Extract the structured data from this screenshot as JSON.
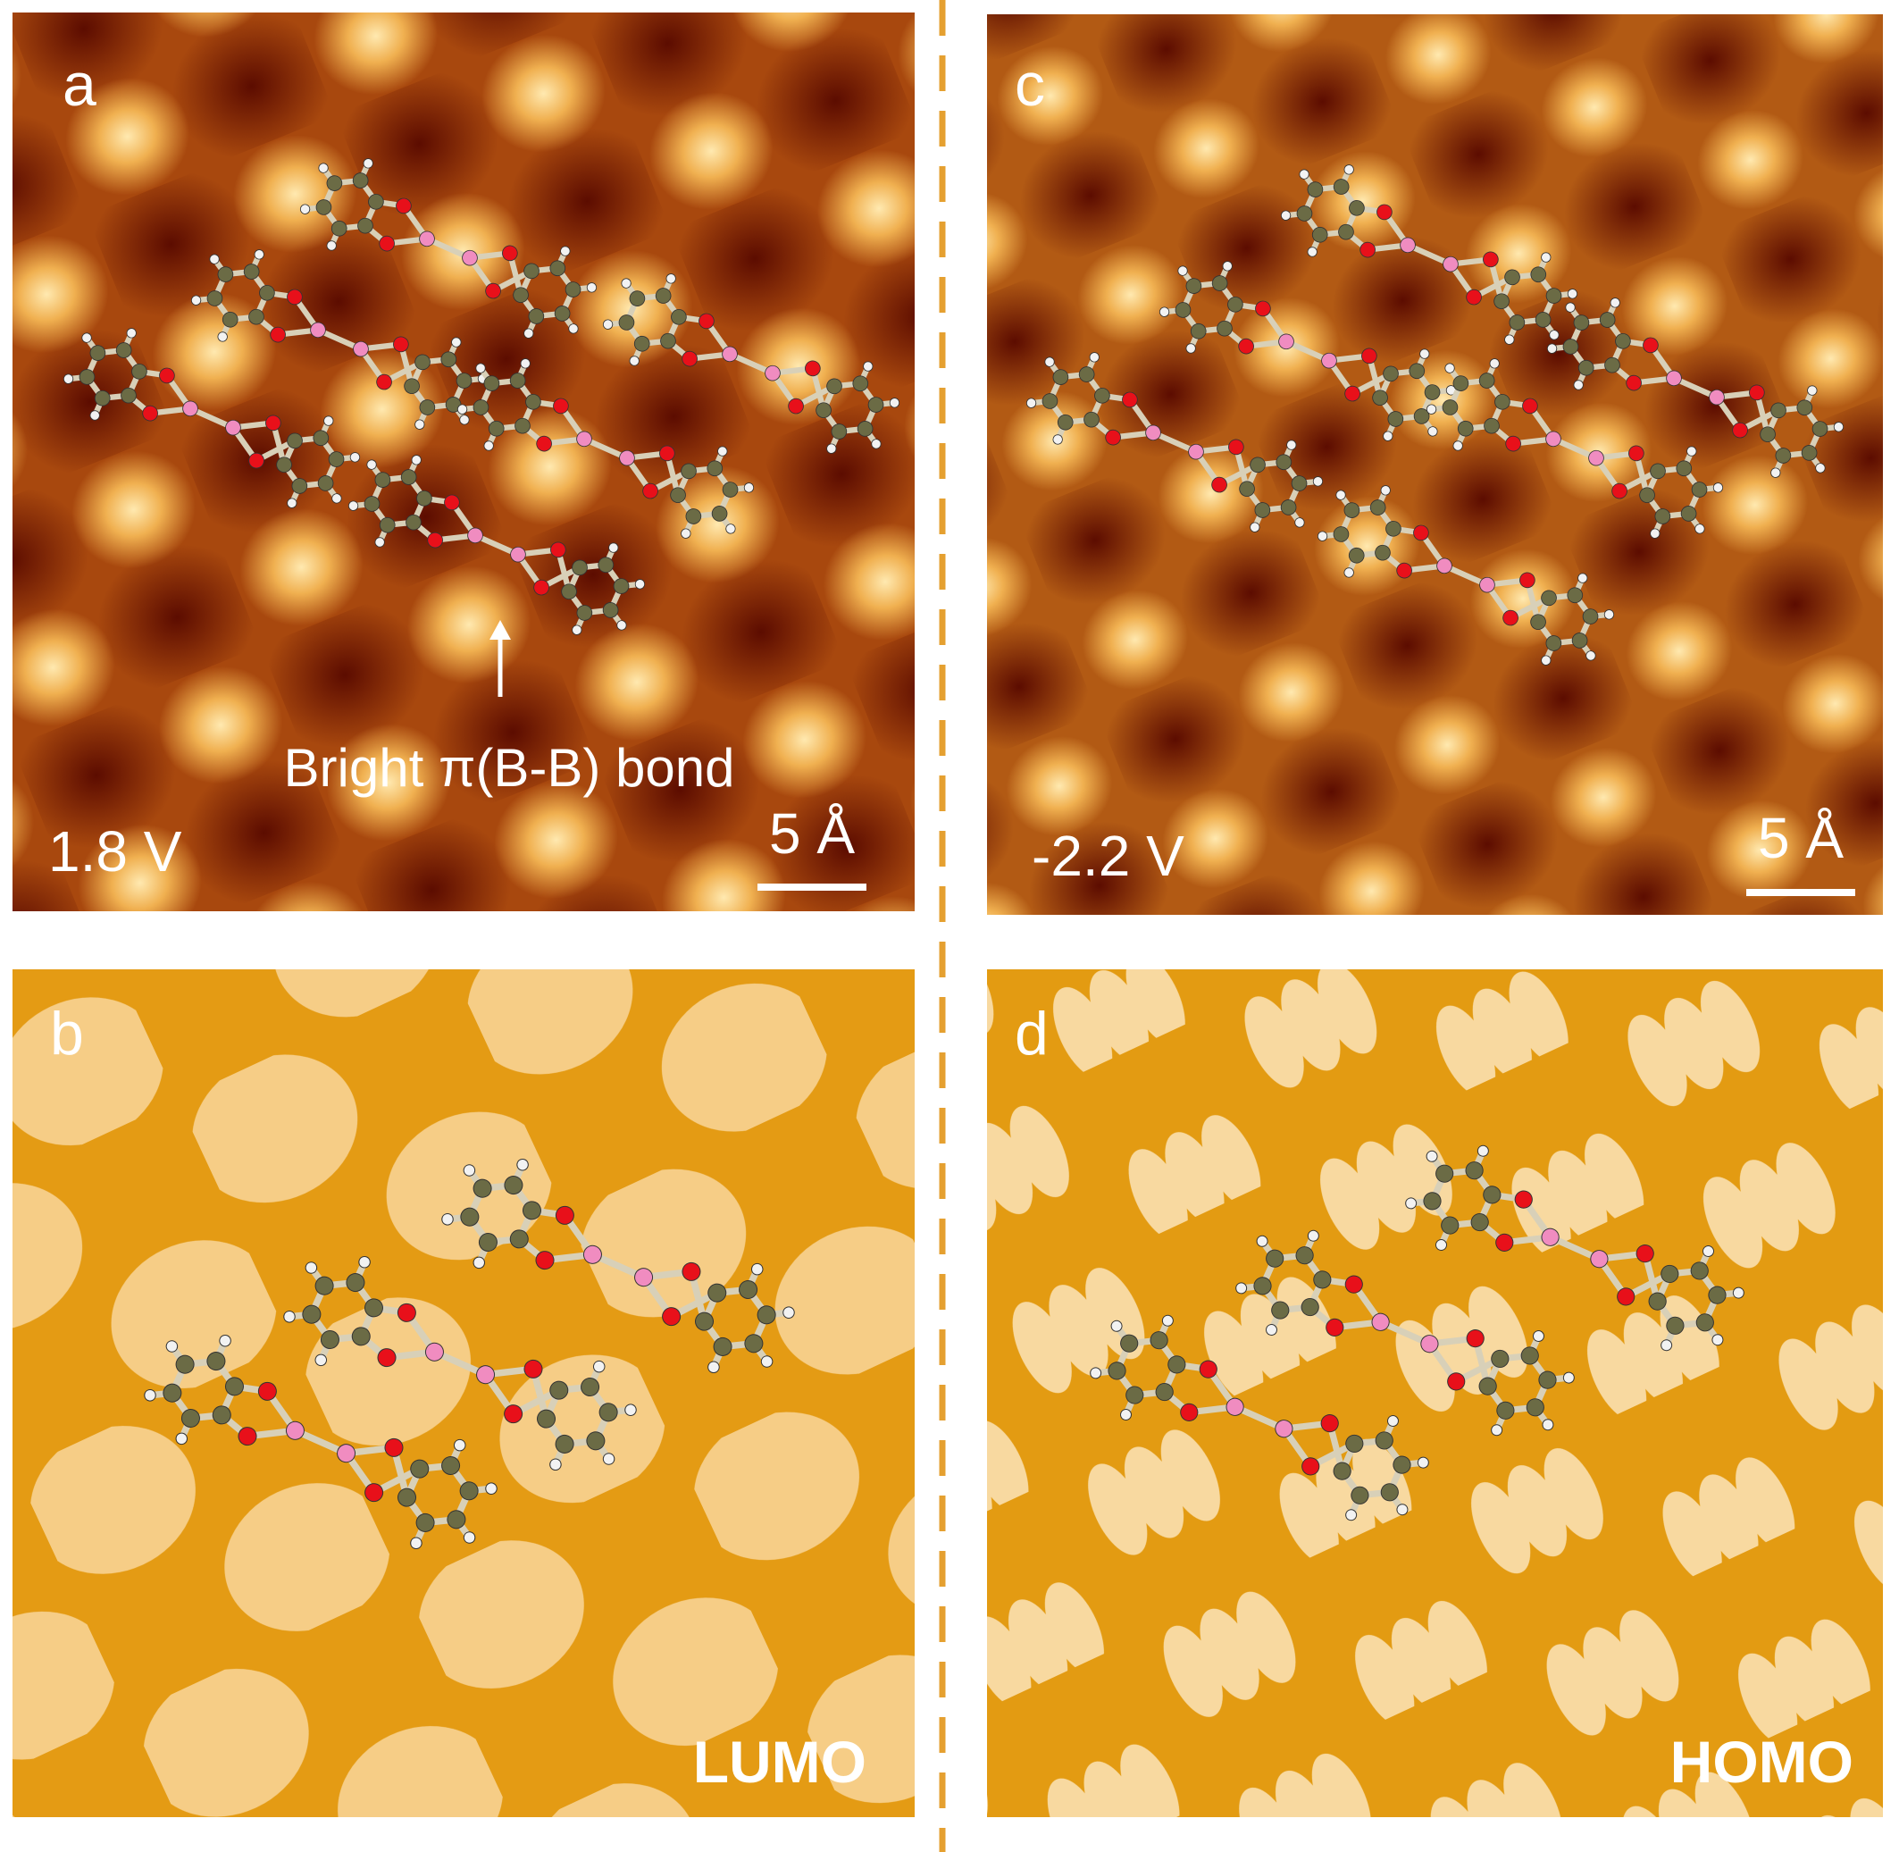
{
  "panels": [
    {
      "label": "a",
      "bias": "1.8 V",
      "scale_bar": "5 Å",
      "annotation": "Bright π(B-B) bond"
    },
    {
      "label": "b",
      "orbital": "LUMO"
    },
    {
      "label": "c",
      "bias": "-2.2 V",
      "scale_bar": "5 Å"
    },
    {
      "label": "d",
      "orbital": "HOMO"
    }
  ]
}
